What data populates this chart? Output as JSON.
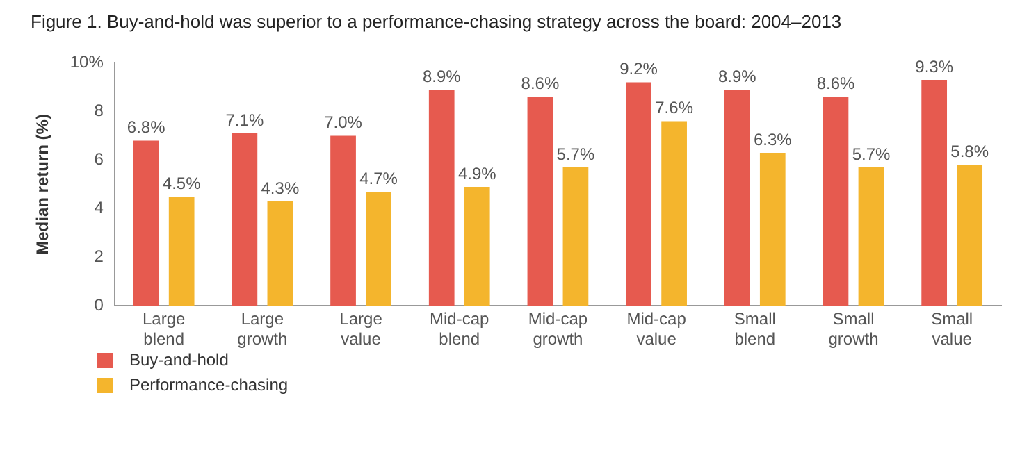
{
  "chart_data": {
    "type": "bar",
    "title": "Figure 1. Buy-and-hold was superior to a performance-chasing strategy across the board: 2004–2013",
    "ylabel": "Median return (%)",
    "categories": [
      "Large blend",
      "Large growth",
      "Large value",
      "Mid-cap blend",
      "Mid-cap growth",
      "Mid-cap value",
      "Small blend",
      "Small growth",
      "Small value"
    ],
    "series": [
      {
        "name": "Buy-and-hold",
        "color": "#e65a4f",
        "values": [
          6.8,
          7.1,
          7.0,
          8.9,
          8.6,
          9.2,
          8.9,
          8.6,
          9.3
        ],
        "value_labels": [
          "6.8%",
          "7.1%",
          "7.0%",
          "8.9%",
          "8.6%",
          "9.2%",
          "8.9%",
          "8.6%",
          "9.3%"
        ]
      },
      {
        "name": "Performance-chasing",
        "color": "#f4b52d",
        "values": [
          4.5,
          4.3,
          4.7,
          4.9,
          5.7,
          7.6,
          6.3,
          5.7,
          5.8
        ],
        "value_labels": [
          "4.5%",
          "4.3%",
          "4.7%",
          "4.9%",
          "5.7%",
          "7.6%",
          "6.3%",
          "5.7%",
          "5.8%"
        ]
      }
    ],
    "ylim": [
      0,
      10
    ],
    "yticks": [
      0,
      2,
      4,
      6,
      8,
      {
        "value": 10,
        "label": "10%"
      }
    ],
    "grid": false,
    "legend": "bottom left"
  }
}
